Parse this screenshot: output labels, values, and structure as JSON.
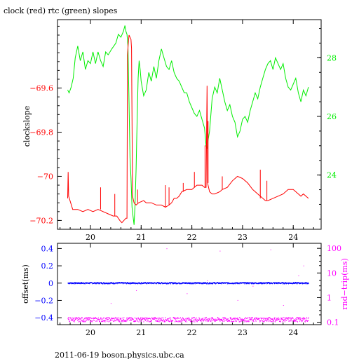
{
  "header": {
    "title": "clock (red) rtc (green) slopes"
  },
  "footer": {
    "text": "2011-06-19 boson.physics.ubc.ca"
  },
  "colors": {
    "clock": "#ff0000",
    "rtc": "#00ee00",
    "offset": "#0000ff",
    "rtt": "#ff00ff",
    "axis": "#000000"
  },
  "chart_data": [
    {
      "type": "line",
      "title": "clock (red) rtc (green) slopes",
      "xlabel": "",
      "ylabel": "clockslope",
      "xlim": [
        19.35,
        24.55
      ],
      "ylim": [
        -70.24,
        -69.29
      ],
      "y2lim": [
        22.15,
        29.3
      ],
      "xticks": [
        20,
        21,
        22,
        23,
        24
      ],
      "yticks": [
        -69.6,
        -69.8,
        -70,
        -70.2
      ],
      "ytick_labels": [
        "−69.6",
        "−69.8",
        "−70",
        "−70.2"
      ],
      "y2ticks": [
        24,
        26,
        28
      ],
      "y2tick_labels": [
        "24",
        "26",
        "28"
      ],
      "series": [
        {
          "axis": "left",
          "color": "#ff0000",
          "points": [
            [
              19.55,
              -70.1
            ],
            [
              19.56,
              -69.98
            ],
            [
              19.57,
              -70.09
            ],
            [
              19.65,
              -70.15
            ],
            [
              19.75,
              -70.15
            ],
            [
              19.85,
              -70.16
            ],
            [
              19.95,
              -70.15
            ],
            [
              20.05,
              -70.16
            ],
            [
              20.15,
              -70.15
            ],
            [
              20.25,
              -70.16
            ],
            [
              20.35,
              -70.17
            ],
            [
              20.45,
              -70.18
            ],
            [
              20.52,
              -70.18
            ],
            [
              20.58,
              -70.2
            ],
            [
              20.62,
              -70.21
            ],
            [
              20.66,
              -70.2
            ],
            [
              20.7,
              -70.19
            ],
            [
              20.72,
              -70.19
            ],
            [
              20.73,
              -69.45
            ],
            [
              20.745,
              -69.4
            ],
            [
              20.76,
              -69.36
            ],
            [
              20.78,
              -69.37
            ],
            [
              20.8,
              -69.38
            ],
            [
              20.81,
              -69.42
            ],
            [
              20.83,
              -70.09
            ],
            [
              20.86,
              -70.12
            ],
            [
              20.9,
              -70.13
            ],
            [
              20.95,
              -70.12
            ],
            [
              21.05,
              -70.11
            ],
            [
              21.1,
              -70.12
            ],
            [
              21.2,
              -70.12
            ],
            [
              21.3,
              -70.13
            ],
            [
              21.4,
              -70.13
            ],
            [
              21.48,
              -70.14
            ],
            [
              21.55,
              -70.13
            ],
            [
              21.6,
              -70.12
            ],
            [
              21.65,
              -70.1
            ],
            [
              21.7,
              -70.1
            ],
            [
              21.75,
              -70.09
            ],
            [
              21.8,
              -70.07
            ],
            [
              21.9,
              -70.06
            ],
            [
              22.0,
              -70.06
            ],
            [
              22.05,
              -70.05
            ],
            [
              22.1,
              -70.04
            ],
            [
              22.2,
              -70.04
            ],
            [
              22.25,
              -70.05
            ],
            [
              22.28,
              -70.05
            ],
            [
              22.3,
              -69.59
            ],
            [
              22.31,
              -70.03
            ],
            [
              22.35,
              -70.07
            ],
            [
              22.4,
              -70.08
            ],
            [
              22.45,
              -70.08
            ],
            [
              22.55,
              -70.07
            ],
            [
              22.6,
              -70.06
            ],
            [
              22.7,
              -70.05
            ],
            [
              22.8,
              -70.02
            ],
            [
              22.9,
              -70.0
            ],
            [
              23.0,
              -70.01
            ],
            [
              23.1,
              -70.03
            ],
            [
              23.2,
              -70.06
            ],
            [
              23.3,
              -70.08
            ],
            [
              23.4,
              -70.1
            ],
            [
              23.45,
              -70.11
            ],
            [
              23.5,
              -70.11
            ],
            [
              23.6,
              -70.1
            ],
            [
              23.7,
              -70.09
            ],
            [
              23.8,
              -70.08
            ],
            [
              23.9,
              -70.06
            ],
            [
              24.0,
              -70.06
            ],
            [
              24.1,
              -70.08
            ],
            [
              24.15,
              -70.09
            ],
            [
              24.2,
              -70.08
            ],
            [
              24.25,
              -70.09
            ],
            [
              24.3,
              -70.1
            ]
          ]
        },
        {
          "axis": "right",
          "color": "#00ee00",
          "points": [
            [
              19.55,
              26.9
            ],
            [
              19.58,
              26.8
            ],
            [
              19.62,
              27.0
            ],
            [
              19.66,
              27.3
            ],
            [
              19.7,
              28.0
            ],
            [
              19.75,
              28.4
            ],
            [
              19.8,
              27.9
            ],
            [
              19.85,
              28.2
            ],
            [
              19.9,
              27.6
            ],
            [
              19.95,
              27.9
            ],
            [
              20.0,
              27.8
            ],
            [
              20.05,
              28.2
            ],
            [
              20.1,
              27.8
            ],
            [
              20.15,
              28.2
            ],
            [
              20.2,
              27.9
            ],
            [
              20.25,
              27.7
            ],
            [
              20.3,
              28.2
            ],
            [
              20.35,
              28.1
            ],
            [
              20.42,
              28.3
            ],
            [
              20.5,
              28.5
            ],
            [
              20.55,
              28.8
            ],
            [
              20.6,
              28.7
            ],
            [
              20.65,
              28.9
            ],
            [
              20.68,
              29.1
            ],
            [
              20.7,
              28.9
            ],
            [
              20.72,
              28.8
            ],
            [
              20.74,
              28.4
            ],
            [
              20.76,
              26.5
            ],
            [
              20.78,
              24.6
            ],
            [
              20.8,
              23.9
            ],
            [
              20.82,
              22.9
            ],
            [
              20.84,
              22.6
            ],
            [
              20.86,
              22.3
            ],
            [
              20.88,
              23.0
            ],
            [
              20.9,
              24.2
            ],
            [
              20.92,
              25.8
            ],
            [
              20.94,
              27.3
            ],
            [
              20.96,
              27.9
            ],
            [
              20.98,
              27.6
            ],
            [
              21.0,
              27.2
            ],
            [
              21.05,
              26.7
            ],
            [
              21.1,
              26.9
            ],
            [
              21.15,
              27.5
            ],
            [
              21.2,
              27.2
            ],
            [
              21.25,
              27.7
            ],
            [
              21.3,
              27.3
            ],
            [
              21.35,
              27.9
            ],
            [
              21.4,
              28.3
            ],
            [
              21.45,
              28.0
            ],
            [
              21.5,
              27.7
            ],
            [
              21.55,
              27.6
            ],
            [
              21.6,
              27.9
            ],
            [
              21.65,
              27.5
            ],
            [
              21.7,
              27.3
            ],
            [
              21.75,
              27.2
            ],
            [
              21.8,
              27.0
            ],
            [
              21.85,
              26.8
            ],
            [
              21.9,
              26.8
            ],
            [
              21.95,
              26.5
            ],
            [
              22.0,
              26.3
            ],
            [
              22.05,
              26.1
            ],
            [
              22.1,
              26.0
            ],
            [
              22.15,
              26.2
            ],
            [
              22.2,
              25.9
            ],
            [
              22.25,
              25.6
            ],
            [
              22.28,
              25.0
            ],
            [
              22.3,
              24.9
            ],
            [
              22.32,
              25.2
            ],
            [
              22.35,
              25.5
            ],
            [
              22.4,
              26.6
            ],
            [
              22.45,
              27.0
            ],
            [
              22.5,
              26.8
            ],
            [
              22.55,
              27.3
            ],
            [
              22.6,
              26.9
            ],
            [
              22.65,
              26.5
            ],
            [
              22.7,
              26.2
            ],
            [
              22.75,
              26.4
            ],
            [
              22.8,
              26.0
            ],
            [
              22.85,
              25.8
            ],
            [
              22.9,
              25.3
            ],
            [
              22.95,
              25.5
            ],
            [
              23.0,
              25.9
            ],
            [
              23.05,
              26.0
            ],
            [
              23.1,
              25.8
            ],
            [
              23.15,
              26.2
            ],
            [
              23.2,
              26.5
            ],
            [
              23.25,
              26.8
            ],
            [
              23.3,
              26.6
            ],
            [
              23.35,
              27.0
            ],
            [
              23.4,
              27.3
            ],
            [
              23.45,
              27.6
            ],
            [
              23.5,
              27.8
            ],
            [
              23.55,
              27.9
            ],
            [
              23.6,
              27.6
            ],
            [
              23.65,
              28.0
            ],
            [
              23.7,
              27.8
            ],
            [
              23.75,
              27.6
            ],
            [
              23.8,
              27.8
            ],
            [
              23.85,
              27.3
            ],
            [
              23.9,
              27.0
            ],
            [
              23.95,
              26.9
            ],
            [
              24.0,
              27.1
            ],
            [
              24.05,
              27.3
            ],
            [
              24.1,
              26.8
            ],
            [
              24.15,
              26.5
            ],
            [
              24.2,
              26.9
            ],
            [
              24.25,
              26.7
            ],
            [
              24.3,
              27.0
            ]
          ]
        }
      ],
      "spikes": [
        {
          "x": 19.56,
          "y": -69.98
        },
        {
          "x": 20.2,
          "y": -70.05
        },
        {
          "x": 20.48,
          "y": -70.08
        },
        {
          "x": 20.93,
          "y": -70.06
        },
        {
          "x": 21.48,
          "y": -70.04
        },
        {
          "x": 21.55,
          "y": -70.05
        },
        {
          "x": 21.83,
          "y": -70.03
        },
        {
          "x": 22.05,
          "y": -69.98
        },
        {
          "x": 22.26,
          "y": -69.86
        },
        {
          "x": 22.32,
          "y": -69.75
        },
        {
          "x": 22.6,
          "y": -70.0
        },
        {
          "x": 23.35,
          "y": -69.97
        },
        {
          "x": 23.48,
          "y": -70.02
        }
      ]
    },
    {
      "type": "scatter",
      "xlabel": "",
      "ylabel": "offset(ms)",
      "y2label": "rnd−trip(ms)",
      "xlim": [
        19.35,
        24.55
      ],
      "ylim": [
        -0.48,
        0.46
      ],
      "y2scale": "log",
      "y2lim": [
        0.08,
        160
      ],
      "xticks": [
        20,
        21,
        22,
        23,
        24
      ],
      "yticks": [
        0.4,
        0.2,
        0,
        -0.2,
        -0.4
      ],
      "ytick_labels": [
        "0.4",
        "0.2",
        "0",
        "−0.2",
        "−0.4"
      ],
      "y2ticks": [
        100,
        10,
        1,
        0.1
      ],
      "y2tick_labels": [
        "100",
        "10",
        "1",
        "0.1"
      ],
      "series": [
        {
          "name": "",
          "axis": "left",
          "color": "#0000ff",
          "x_range": [
            19.55,
            24.3
          ],
          "y": 0.0,
          "scatter": 0.008
        },
        {
          "name": "",
          "axis": "right",
          "color": "#ff00ff",
          "x_range": [
            19.55,
            24.3
          ],
          "y": 0.13,
          "scatter": 0.025
        }
      ],
      "outliers": [
        {
          "axis": "right",
          "x": 21.5,
          "y": 100
        },
        {
          "axis": "right",
          "x": 22.55,
          "y": 80
        },
        {
          "axis": "right",
          "x": 23.55,
          "y": 90
        },
        {
          "axis": "right",
          "x": 24.1,
          "y": 8
        },
        {
          "axis": "right",
          "x": 22.3,
          "y": 5
        },
        {
          "axis": "right",
          "x": 23.2,
          "y": 3
        },
        {
          "axis": "right",
          "x": 20.9,
          "y": 2
        },
        {
          "axis": "right",
          "x": 21.9,
          "y": 1.5
        },
        {
          "axis": "right",
          "x": 22.9,
          "y": 0.8
        },
        {
          "axis": "right",
          "x": 20.4,
          "y": 0.6
        },
        {
          "axis": "right",
          "x": 23.8,
          "y": 0.5
        },
        {
          "axis": "right",
          "x": 24.2,
          "y": 20
        }
      ]
    }
  ]
}
